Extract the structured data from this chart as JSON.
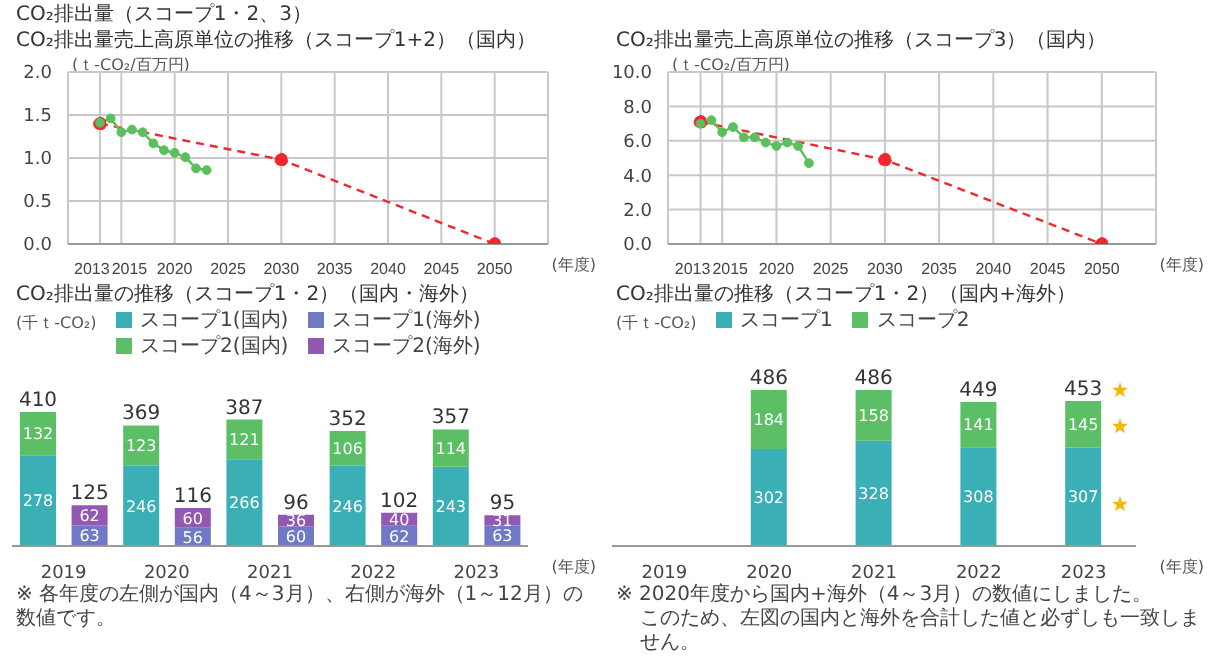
{
  "chart_data": [
    {
      "type": "line",
      "title": "CO₂排出量（スコープ1・2、3）",
      "subtitle": "CO₂排出量売上高原単位の推移（スコープ1+2）（国内）",
      "ylabel": "(ｔ-CO₂/百万円)",
      "xlabel": "(年度)",
      "xlim": [
        2010,
        2055
      ],
      "xticks": [
        2013,
        2015,
        2020,
        2025,
        2030,
        2035,
        2040,
        2045,
        2050
      ],
      "ylim": [
        0,
        2
      ],
      "yticks": [
        {
          "value": 0,
          "label": "0.0"
        },
        0.5,
        {
          "value": 1,
          "label": "1.0"
        },
        1.5,
        {
          "value": 2,
          "label": "2.0"
        }
      ],
      "grid": true,
      "marker": "circle",
      "series": [
        {
          "color": "#5cbf5e",
          "line_style": "solid",
          "x": [
            2013,
            2014,
            2015,
            2016,
            2017,
            2018,
            2019,
            2020,
            2021,
            2022,
            2023
          ],
          "values": [
            1.41,
            1.46,
            1.3,
            1.33,
            1.3,
            1.17,
            1.09,
            1.06,
            1.01,
            0.88,
            0.86
          ]
        },
        {
          "color": "#f0282d",
          "line_style": "dashed",
          "x": [
            2013,
            2030,
            2050
          ],
          "values": [
            1.4,
            0.98,
            0
          ]
        }
      ]
    },
    {
      "type": "line",
      "title": "CO₂排出量売上高原単位の推移（スコープ3）（国内）",
      "ylabel": "(ｔ-CO₂/百万円)",
      "xlabel": "(年度)",
      "xlim": [
        2010,
        2055
      ],
      "xticks": [
        2013,
        2015,
        2020,
        2025,
        2030,
        2035,
        2040,
        2045,
        2050
      ],
      "ylim": [
        0,
        10
      ],
      "yticks": [
        {
          "value": 0,
          "label": "0.0"
        },
        {
          "value": 2,
          "label": "2.0"
        },
        {
          "value": 4,
          "label": "4.0"
        },
        {
          "value": 6,
          "label": "6.0"
        },
        {
          "value": 8,
          "label": "8.0"
        },
        {
          "value": 10,
          "label": "10.0"
        }
      ],
      "grid": true,
      "marker": "circle",
      "series": [
        {
          "color": "#5cbf5e",
          "line_style": "solid",
          "x": [
            2013,
            2014,
            2015,
            2016,
            2017,
            2018,
            2019,
            2020,
            2021,
            2022,
            2023
          ],
          "values": [
            7.0,
            7.2,
            6.5,
            6.8,
            6.2,
            6.2,
            5.9,
            5.7,
            5.9,
            5.7,
            4.7
          ]
        },
        {
          "color": "#f0282d",
          "line_style": "dashed",
          "x": [
            2013,
            2030,
            2050
          ],
          "values": [
            7.1,
            4.9,
            0
          ]
        }
      ]
    },
    {
      "type": "bar",
      "title": "CO₂排出量の推移（スコープ1・2）（国内・海外）",
      "ylabel": "(千ｔ-CO₂)",
      "xlabel": "(年度)",
      "categories": [
        "2019",
        null,
        "2020",
        null,
        "2021",
        null,
        "2022",
        null,
        "2023",
        null
      ],
      "stacked": true,
      "data_labels": true,
      "legend": "top",
      "annotations": [
        "※ 各年度の左側が国内（4～3月）、右側が海外（1～12月）の数値です。"
      ],
      "totals": [
        "410",
        "125",
        "369",
        "116",
        "387",
        "96",
        "352",
        "102",
        "357",
        "95"
      ],
      "series": [
        {
          "name": "スコープ1(国内)",
          "color": "#3aafb5",
          "values": [
            278,
            null,
            246,
            null,
            266,
            null,
            246,
            null,
            243,
            null
          ]
        },
        {
          "name": "スコープ2(国内)",
          "color": "#5cbf66",
          "values": [
            132,
            null,
            123,
            null,
            121,
            null,
            106,
            null,
            114,
            null
          ]
        },
        {
          "name": "スコープ1(海外)",
          "color": "#7079c6",
          "values": [
            null,
            63,
            null,
            56,
            null,
            60,
            null,
            62,
            null,
            63
          ]
        },
        {
          "name": "スコープ2(海外)",
          "color": "#9258b2",
          "values": [
            null,
            62,
            null,
            60,
            null,
            36,
            null,
            40,
            null,
            31
          ]
        }
      ]
    },
    {
      "type": "bar",
      "title": "CO₂排出量の推移（スコープ1・2）（国内+海外）",
      "ylabel": "(千ｔ-CO₂)",
      "xlabel": "(年度)",
      "categories": [
        "2019",
        "2020",
        "2021",
        "2022",
        "2023"
      ],
      "stacked": true,
      "data_labels": true,
      "legend": "top",
      "annotations": [
        "※ 2020年度から国内+海外（4～3月）の数値にしました。",
        "このため、左図の国内と海外を合計した値と必ずしも一致しません。"
      ],
      "totals": [
        null,
        "486",
        "486",
        "449",
        "453"
      ],
      "series": [
        {
          "name": "スコープ1",
          "color": "#3aafb5",
          "values": [
            null,
            302,
            328,
            308,
            307
          ]
        },
        {
          "name": "スコープ2",
          "color": "#5cbf66",
          "values": [
            null,
            184,
            158,
            141,
            145
          ]
        }
      ]
    }
  ]
}
